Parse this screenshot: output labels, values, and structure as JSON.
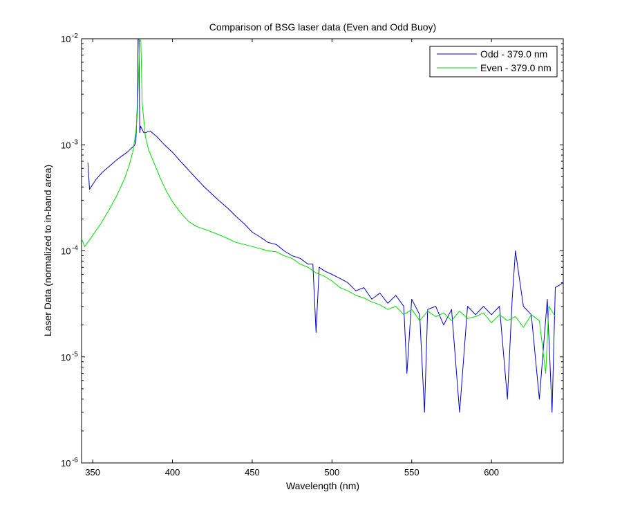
{
  "chart_data": {
    "type": "line",
    "title": "Comparison of BSG laser data (Even and Odd Buoy)",
    "xlabel": "Wavelength (nm)",
    "ylabel": "Laser Data (normalized to in-band area)",
    "xlim": [
      343,
      645
    ],
    "ylim": [
      1e-06,
      0.01
    ],
    "yscale": "log",
    "grid": false,
    "legend_position": "top-right",
    "x_ticks": [
      350,
      400,
      450,
      500,
      550,
      600
    ],
    "x_tick_labels": [
      "350",
      "400",
      "450",
      "500",
      "550",
      "600"
    ],
    "y_ticks": [
      {
        "value": 0.01,
        "base": "10",
        "exp": "-2"
      },
      {
        "value": 0.001,
        "base": "10",
        "exp": "-3"
      },
      {
        "value": 0.0001,
        "base": "10",
        "exp": "-4"
      },
      {
        "value": 1e-05,
        "base": "10",
        "exp": "-5"
      },
      {
        "value": 1e-06,
        "base": "10",
        "exp": "-6"
      }
    ],
    "series": [
      {
        "name": "Odd - 379.0 nm",
        "color": "#0000cc",
        "x": [
          347,
          348,
          352,
          356,
          360,
          364,
          368,
          372,
          374,
          376,
          377,
          378,
          378.5,
          379,
          379.5,
          380,
          381,
          382,
          383,
          386,
          390,
          395,
          400,
          405,
          410,
          415,
          420,
          425,
          430,
          435,
          440,
          445,
          450,
          455,
          460,
          465,
          470,
          475,
          480,
          485,
          488,
          490,
          492,
          495,
          500,
          505,
          510,
          515,
          520,
          525,
          530,
          535,
          540,
          545,
          547,
          550,
          555,
          558,
          560,
          565,
          570,
          575,
          580,
          585,
          590,
          595,
          600,
          605,
          610,
          613,
          615,
          620,
          625,
          630,
          635,
          638,
          640,
          645
        ],
        "y": [
          0.00068,
          0.00038,
          0.00047,
          0.00055,
          0.00062,
          0.0007,
          0.00078,
          0.00086,
          0.00092,
          0.00098,
          0.00105,
          0.0025,
          0.012,
          0.012,
          0.0013,
          0.0015,
          0.0014,
          0.0013,
          0.0013,
          0.00135,
          0.0012,
          0.001,
          0.00085,
          0.0007,
          0.00058,
          0.00048,
          0.0004,
          0.00034,
          0.00029,
          0.00025,
          0.00021,
          0.00018,
          0.00015,
          0.000135,
          0.00012,
          0.000115,
          0.0001,
          9e-05,
          8.5e-05,
          7.5e-05,
          7.5e-05,
          1.7e-05,
          7e-05,
          6.5e-05,
          6e-05,
          5.5e-05,
          5e-05,
          4.2e-05,
          4.5e-05,
          3.5e-05,
          4e-05,
          3.2e-05,
          3.8e-05,
          3e-05,
          7e-06,
          3.5e-05,
          2.5e-05,
          3e-06,
          2.8e-05,
          3e-05,
          2e-05,
          2.8e-05,
          3e-06,
          3e-05,
          2.5e-05,
          3e-05,
          2.5e-05,
          3e-05,
          4e-06,
          3.5e-05,
          0.0001,
          3e-05,
          2.5e-05,
          4e-06,
          3.5e-05,
          3e-06,
          4.5e-05,
          5e-05
        ]
      },
      {
        "name": "Even - 379.0 nm",
        "color": "#00dd00",
        "x": [
          343,
          345,
          350,
          355,
          360,
          365,
          370,
          373,
          375,
          377,
          378,
          379,
          379.5,
          380,
          380.5,
          381,
          383,
          385,
          388,
          392,
          396,
          400,
          405,
          410,
          415,
          420,
          425,
          430,
          435,
          440,
          445,
          450,
          455,
          460,
          465,
          470,
          475,
          480,
          485,
          490,
          495,
          500,
          505,
          510,
          515,
          520,
          525,
          530,
          535,
          540,
          545,
          550,
          555,
          560,
          565,
          570,
          575,
          580,
          585,
          590,
          595,
          600,
          605,
          610,
          615,
          620,
          625,
          630,
          634,
          636,
          640
        ],
        "y": [
          0.00013,
          0.00011,
          0.00014,
          0.00018,
          0.00024,
          0.00033,
          0.00048,
          0.00065,
          0.00085,
          0.0013,
          0.002,
          0.006,
          0.012,
          0.012,
          0.006,
          0.0025,
          0.0012,
          0.0009,
          0.0007,
          0.0005,
          0.00037,
          0.00029,
          0.00023,
          0.00019,
          0.00017,
          0.00016,
          0.00015,
          0.00014,
          0.00013,
          0.00012,
          0.000115,
          0.00011,
          0.000105,
          0.0001,
          9.8e-05,
          9e-05,
          8.5e-05,
          7.5e-05,
          7e-05,
          6.2e-05,
          5.8e-05,
          5.2e-05,
          4.5e-05,
          4.2e-05,
          3.8e-05,
          3.6e-05,
          3.3e-05,
          3.1e-05,
          2.8e-05,
          3e-05,
          2.5e-05,
          2.8e-05,
          2.2e-05,
          2.7e-05,
          2.4e-05,
          2.6e-05,
          2.2e-05,
          2.7e-05,
          2.3e-05,
          2.4e-05,
          2.6e-05,
          2.1e-05,
          2.5e-05,
          2.2e-05,
          2.4e-05,
          1.9e-05,
          2.5e-05,
          2.2e-05,
          7e-06,
          3e-05,
          2.4e-05
        ]
      }
    ]
  }
}
